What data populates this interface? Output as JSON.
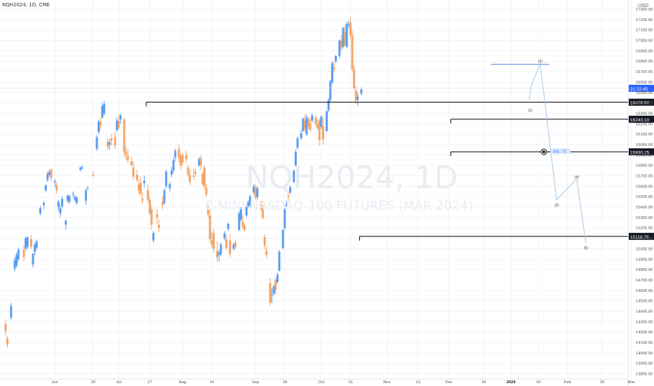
{
  "header": {
    "symbol": "NQH2024, 1D, CME",
    "currency": "USD"
  },
  "watermark": {
    "line1": "NQH2024, 1D",
    "line2": "E-MINI NASDAQ-100 FUTURES (MAR 2024)"
  },
  "colors": {
    "up": "#5b9cf0",
    "down": "#f3a468",
    "grid": "#f1f3f6",
    "axis_text": "#555555",
    "level_line": "#000000",
    "projection": "#a7c5e6",
    "price_label_bg": "#131722"
  },
  "price_axis": {
    "min": 13750,
    "max": 17300,
    "tick_labels": [
      "17300.00",
      "17200.00",
      "17100.00",
      "17000.00",
      "16900.00",
      "16800.00",
      "16700.00",
      "16600.00",
      "16500.00",
      "16400.00",
      "16300.00",
      "16200.00",
      "16100.00",
      "16000.00",
      "15900.00",
      "15800.00",
      "15700.00",
      "15600.00",
      "15500.00",
      "15400.00",
      "15300.00",
      "15200.00",
      "15100.00",
      "15000.00",
      "14900.00",
      "14800.00",
      "14700.00",
      "14600.00",
      "14500.00",
      "14400.00",
      "14300.00",
      "14200.00",
      "14100.00",
      "14000.00",
      "13900.00",
      "13800.00"
    ]
  },
  "time_axis": {
    "labels": [
      "Jun",
      "20",
      "Jul",
      "17",
      "Aug",
      "14",
      "Sep",
      "18",
      "Oct",
      "16",
      "Nov",
      "13",
      "Dec",
      "18",
      "2024",
      "16",
      "Feb",
      "20",
      "Mar"
    ],
    "label_days": [
      27,
      48,
      62,
      79,
      97,
      113,
      137,
      153,
      173,
      189,
      209,
      226,
      243,
      262,
      277,
      292,
      308,
      327,
      343
    ],
    "bold_index": 14
  },
  "current_price": "21:22:45",
  "levels": [
    {
      "label": "16406.50",
      "price": 16406.5,
      "start_day": 77
    },
    {
      "label": "16243.10",
      "price": 16243.1,
      "start_day": 244
    },
    {
      "label": "15930.25",
      "price": 15930.25,
      "start_day": 244
    },
    {
      "label": "15118.75",
      "price": 15118.75,
      "start_day": 194
    }
  ],
  "short_line": {
    "price": 16770,
    "start_day": 266,
    "end_day": 298
  },
  "tp_label": "SSL - T1",
  "wave_labels": [
    "(1)",
    "(2)",
    "(3)",
    "(4)",
    "(5)"
  ],
  "wave_path": [
    {
      "day": 288,
      "price": 16562
    },
    {
      "day": 293,
      "price": 16780
    },
    {
      "day": 302,
      "price": 15470
    },
    {
      "day": 313,
      "price": 15670
    },
    {
      "day": 318,
      "price": 15060
    }
  ],
  "candles": [
    [
      0,
      14280,
      14320,
      14160,
      14210
    ],
    [
      1,
      14140,
      14160,
      14050,
      14080
    ],
    [
      3,
      14340,
      14480,
      14320,
      14450
    ],
    [
      5,
      14810,
      14920,
      14780,
      14890
    ],
    [
      6,
      14840,
      14960,
      14820,
      14940
    ],
    [
      7,
      14900,
      15010,
      14880,
      14990
    ],
    [
      10,
      14990,
      15030,
      14880,
      14920
    ],
    [
      11,
      15000,
      15120,
      14980,
      15100
    ],
    [
      12,
      15020,
      15120,
      15000,
      15110
    ],
    [
      14,
      15090,
      15130,
      15000,
      15020
    ],
    [
      15,
      14850,
      14960,
      14820,
      14950
    ],
    [
      16,
      14970,
      15060,
      14940,
      15040
    ],
    [
      17,
      15010,
      15090,
      14990,
      15070
    ],
    [
      19,
      15340,
      15410,
      15320,
      15390
    ],
    [
      21,
      15420,
      15460,
      15380,
      15440
    ],
    [
      22,
      15560,
      15620,
      15540,
      15610
    ],
    [
      23,
      15660,
      15740,
      15640,
      15720
    ],
    [
      24,
      15710,
      15760,
      15690,
      15740
    ],
    [
      25,
      15760,
      15770,
      15650,
      15680
    ],
    [
      27,
      15640,
      15670,
      15590,
      15650
    ],
    [
      28,
      15610,
      15640,
      15530,
      15560
    ],
    [
      29,
      15400,
      15470,
      15360,
      15450
    ],
    [
      30,
      15340,
      15420,
      15300,
      15390
    ],
    [
      31,
      15410,
      15500,
      15390,
      15480
    ],
    [
      33,
      15230,
      15280,
      15180,
      15270
    ],
    [
      34,
      15460,
      15520,
      15440,
      15510
    ],
    [
      35,
      15450,
      15520,
      15430,
      15500
    ],
    [
      37,
      15530,
      15550,
      15490,
      15530
    ],
    [
      38,
      15470,
      15520,
      15450,
      15500
    ],
    [
      39,
      15440,
      15500,
      15420,
      15490
    ],
    [
      41,
      15760,
      15790,
      15740,
      15780
    ],
    [
      42,
      15780,
      15800,
      15760,
      15780
    ],
    [
      44,
      15460,
      15580,
      15420,
      15560
    ],
    [
      45,
      15580,
      15600,
      15560,
      15580
    ],
    [
      48,
      15710,
      15740,
      15690,
      15700
    ],
    [
      50,
      15960,
      16090,
      15940,
      16070
    ],
    [
      51,
      16120,
      16240,
      16100,
      16220
    ],
    [
      52,
      16220,
      16260,
      16140,
      16180
    ],
    [
      53,
      16260,
      16400,
      16250,
      16370
    ],
    [
      54,
      16300,
      16420,
      16280,
      16390
    ],
    [
      56,
      16030,
      16060,
      15950,
      15980
    ],
    [
      57,
      16000,
      16050,
      15950,
      16020
    ],
    [
      58,
      16060,
      16100,
      15990,
      16040
    ],
    [
      60,
      16070,
      16120,
      15960,
      15990
    ],
    [
      61,
      16140,
      16260,
      16120,
      16230
    ],
    [
      62,
      16230,
      16290,
      16140,
      16160
    ],
    [
      63,
      16240,
      16300,
      16200,
      16280
    ],
    [
      65,
      16240,
      16260,
      15880,
      15930
    ],
    [
      66,
      15930,
      15980,
      15850,
      15900
    ],
    [
      67,
      15890,
      15960,
      15820,
      15850
    ],
    [
      69,
      15840,
      15880,
      15790,
      15800
    ],
    [
      70,
      15780,
      15840,
      15660,
      15690
    ],
    [
      72,
      15710,
      15760,
      15640,
      15660
    ],
    [
      73,
      15620,
      15660,
      15520,
      15560
    ],
    [
      74,
      15630,
      15690,
      15510,
      15530
    ],
    [
      75,
      15480,
      15540,
      15430,
      15460
    ],
    [
      76,
      15630,
      15700,
      15590,
      15650
    ],
    [
      78,
      15560,
      15620,
      15440,
      15470
    ],
    [
      79,
      15470,
      15500,
      15320,
      15340
    ],
    [
      80,
      15380,
      15420,
      15180,
      15230
    ],
    [
      81,
      15080,
      15170,
      15060,
      15150
    ],
    [
      83,
      15330,
      15380,
      15240,
      15300
    ],
    [
      84,
      15230,
      15280,
      15160,
      15200
    ],
    [
      86,
      15450,
      15500,
      15380,
      15420
    ],
    [
      87,
      15440,
      15580,
      15420,
      15560
    ],
    [
      88,
      15600,
      15760,
      15580,
      15740
    ],
    [
      90,
      15580,
      15640,
      15550,
      15620
    ],
    [
      91,
      15710,
      15780,
      15690,
      15750
    ],
    [
      92,
      15750,
      15880,
      15730,
      15850
    ],
    [
      93,
      15880,
      15960,
      15840,
      15940
    ],
    [
      95,
      15960,
      16000,
      15830,
      15870
    ],
    [
      96,
      15890,
      15920,
      15760,
      15800
    ],
    [
      97,
      15900,
      15920,
      15800,
      15830
    ],
    [
      99,
      15900,
      15940,
      15830,
      15860
    ],
    [
      100,
      15780,
      15800,
      15690,
      15710
    ],
    [
      101,
      15710,
      15760,
      15610,
      15640
    ],
    [
      103,
      15700,
      15770,
      15660,
      15690
    ],
    [
      104,
      15740,
      15770,
      15690,
      15720
    ],
    [
      106,
      15800,
      15880,
      15790,
      15860
    ],
    [
      107,
      15870,
      15900,
      15760,
      15800
    ],
    [
      108,
      15720,
      15740,
      15600,
      15620
    ],
    [
      109,
      15780,
      15800,
      15570,
      15600
    ],
    [
      110,
      15590,
      15620,
      15500,
      15520
    ],
    [
      111,
      15380,
      15420,
      15300,
      15330
    ],
    [
      112,
      15320,
      15380,
      15060,
      15090
    ],
    [
      113,
      15080,
      15160,
      15010,
      15040
    ],
    [
      114,
      15150,
      15200,
      14960,
      15000
    ],
    [
      116,
      14980,
      15070,
      14870,
      14920
    ],
    [
      117,
      14940,
      14990,
      14880,
      14960
    ],
    [
      118,
      14950,
      15060,
      14930,
      15040
    ],
    [
      120,
      15100,
      15170,
      15080,
      15150
    ],
    [
      121,
      15090,
      15130,
      14990,
      15010
    ],
    [
      122,
      15190,
      15250,
      15170,
      15240
    ],
    [
      123,
      15080,
      15140,
      14920,
      14950
    ],
    [
      125,
      15000,
      15060,
      14980,
      15040
    ],
    [
      126,
      15060,
      15090,
      15000,
      15020
    ],
    [
      128,
      15180,
      15360,
      15170,
      15340
    ],
    [
      129,
      15280,
      15400,
      15260,
      15380
    ],
    [
      130,
      15260,
      15320,
      15190,
      15210
    ],
    [
      131,
      15220,
      15240,
      15160,
      15180
    ],
    [
      132,
      15320,
      15420,
      15300,
      15400
    ],
    [
      133,
      15410,
      15470,
      15390,
      15450
    ],
    [
      134,
      15420,
      15520,
      15400,
      15500
    ],
    [
      136,
      15540,
      15620,
      15520,
      15600
    ],
    [
      137,
      15590,
      15620,
      15470,
      15490
    ],
    [
      138,
      15500,
      15600,
      15470,
      15580
    ],
    [
      140,
      15430,
      15460,
      15360,
      15380
    ],
    [
      141,
      15380,
      15420,
      15280,
      15300
    ],
    [
      142,
      15110,
      15140,
      14990,
      15030
    ],
    [
      143,
      14980,
      15020,
      14910,
      14940
    ],
    [
      145,
      14670,
      14720,
      14450,
      14480
    ],
    [
      146,
      14560,
      14620,
      14480,
      14560
    ],
    [
      147,
      14570,
      14660,
      14550,
      14640
    ],
    [
      148,
      14700,
      14720,
      14560,
      14600
    ],
    [
      149,
      14680,
      14770,
      14670,
      14750
    ],
    [
      150,
      14790,
      14990,
      14780,
      14970
    ],
    [
      152,
      15010,
      15190,
      14990,
      15180
    ],
    [
      153,
      15200,
      15390,
      15180,
      15380
    ],
    [
      154,
      15400,
      15460,
      15380,
      15430
    ],
    [
      155,
      15510,
      15550,
      15460,
      15500
    ],
    [
      156,
      15540,
      15610,
      15520,
      15590
    ],
    [
      158,
      15640,
      15760,
      15630,
      15750
    ],
    [
      159,
      15800,
      15950,
      15790,
      15930
    ],
    [
      160,
      15970,
      16080,
      15950,
      16060
    ],
    [
      162,
      16060,
      16140,
      16040,
      16110
    ],
    [
      163,
      16130,
      16260,
      16120,
      16250
    ],
    [
      164,
      16230,
      16290,
      16120,
      16150
    ],
    [
      165,
      16100,
      16290,
      16080,
      16260
    ],
    [
      166,
      16240,
      16270,
      16150,
      16180
    ],
    [
      167,
      16200,
      16250,
      16120,
      16140
    ],
    [
      168,
      16230,
      16300,
      16210,
      16280
    ],
    [
      170,
      16260,
      16280,
      16170,
      16200
    ],
    [
      171,
      16200,
      16240,
      16140,
      16160
    ],
    [
      172,
      16230,
      16250,
      15990,
      16040
    ],
    [
      173,
      16170,
      16280,
      16150,
      16270
    ],
    [
      174,
      16180,
      16260,
      16000,
      16050
    ],
    [
      176,
      16130,
      16330,
      16120,
      16320
    ],
    [
      177,
      16330,
      16450,
      16310,
      16430
    ],
    [
      178,
      16430,
      16620,
      16410,
      16610
    ],
    [
      179,
      16600,
      16800,
      16580,
      16780
    ],
    [
      180,
      16740,
      16800,
      16690,
      16720
    ],
    [
      181,
      16800,
      16860,
      16780,
      16850
    ],
    [
      183,
      16850,
      17010,
      16830,
      17000
    ],
    [
      184,
      17000,
      17050,
      16900,
      16930
    ],
    [
      185,
      16940,
      17130,
      16920,
      17120
    ],
    [
      186,
      17080,
      17140,
      16940,
      16960
    ],
    [
      187,
      16940,
      17180,
      16920,
      17160
    ],
    [
      188,
      17150,
      17190,
      17120,
      17150
    ],
    [
      189,
      17170,
      17220,
      17020,
      17050
    ],
    [
      190,
      17050,
      17100,
      16700,
      16720
    ],
    [
      191,
      16720,
      16760,
      16520,
      16540
    ],
    [
      192,
      16520,
      16560,
      16390,
      16420
    ],
    [
      193,
      16430,
      16500,
      16370,
      16460
    ],
    [
      195,
      16490,
      16550,
      16470,
      16530
    ]
  ]
}
